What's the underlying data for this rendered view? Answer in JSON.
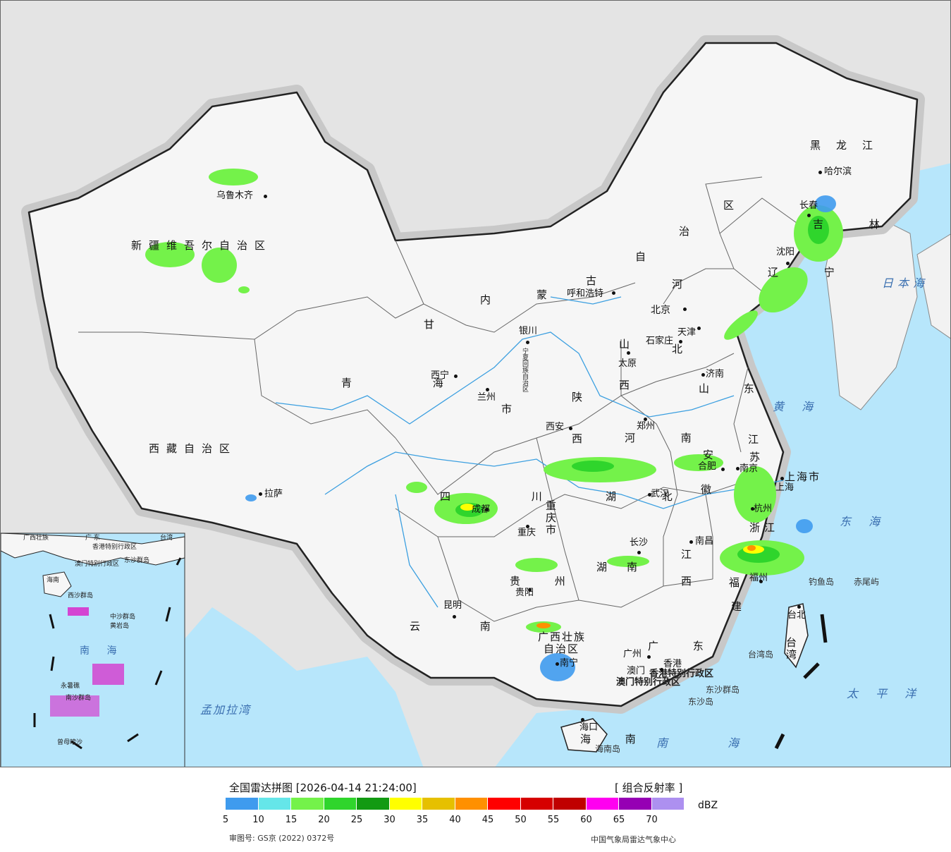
{
  "legend": {
    "title": "全国雷达拼图 [2026-04-14 21:24:00]",
    "product": "[ 组合反射率 ]",
    "unit": "dBZ",
    "approval": "审图号: GS京 (2022) 0372号",
    "source": "中国气象局雷达气象中心",
    "colors": [
      "#3f9bee",
      "#65e6e9",
      "#74f24a",
      "#2fd52c",
      "#129a12",
      "#ffff00",
      "#e6c000",
      "#ff9000",
      "#ff0000",
      "#d60000",
      "#c00000",
      "#ff00f0",
      "#9600b4",
      "#ad90f0"
    ],
    "ticks": [
      "5",
      "10",
      "15",
      "20",
      "25",
      "30",
      "35",
      "40",
      "45",
      "50",
      "55",
      "60",
      "65",
      "70"
    ]
  },
  "provinces": {
    "xinjiang": "新疆维吾尔自治区",
    "xizang": "西藏自治区",
    "qinghai": "青 海",
    "gansu": "甘",
    "neimenggu_a": "内",
    "neimenggu_b": "蒙",
    "neimenggu_c": "古",
    "neimenggu_d": "自",
    "neimenggu_e": "治",
    "neimenggu_f": "区",
    "heilongjiang": "黑龙江",
    "jilin": "吉 林",
    "liaoning": "辽 宁",
    "hebei_a": "河",
    "hebei_b": "北",
    "shanxi": "山",
    "shanxi_b": "西",
    "shandong": "山 东",
    "henan": "河 南",
    "shaanxi": "陕",
    "shaanxi_b": "西",
    "sichuan": "四 川",
    "chongqing": "重庆市",
    "hubei": "湖 北",
    "hunan": "湖",
    "hunan_b": "南",
    "jiangxi": "江",
    "jiangxi_b": "西",
    "anhui": "安",
    "anhui_b": "徽",
    "jiangsu": "江",
    "jiangsu_b": "苏",
    "zhejiang": "浙江",
    "fujian": "福",
    "fujian_b": "建",
    "guangdong": "广 东",
    "guangxi_a": "广西壮族",
    "guangxi_b": "自治区",
    "guizhou": "贵 州",
    "yunnan": "云 南",
    "hainan": "海 南",
    "taiwan": "台湾",
    "shanghai": "上海市",
    "ningxia": "宁夏回族自治区",
    "beijing": "北京",
    "tianjin": "天津",
    "hk": "香港特别行政区",
    "macau": "澳门特别行政区",
    "gansu_shi": "市"
  },
  "cities": {
    "urumqi": "乌鲁木齐",
    "lhasa": "拉萨",
    "xining": "西宁",
    "lanzhou": "兰州",
    "yinchuan": "银川",
    "hohhot": "呼和浩特",
    "beijing": "北京",
    "tianjin": "天津",
    "shijiazhuang": "石家庄",
    "taiyuan": "太原",
    "jinan": "济南",
    "zhengzhou": "郑州",
    "xian": "西安",
    "chengdu": "成都",
    "chongqing": "重庆",
    "wuhan": "武汉",
    "hefei": "合肥",
    "nanjing": "南京",
    "shanghai": "上海",
    "hangzhou": "杭州",
    "nanchang": "南昌",
    "changsha": "长沙",
    "fuzhou": "福州",
    "guiyang": "贵阳",
    "kunming": "昆明",
    "nanning": "南宁",
    "guangzhou": "广州",
    "hongkong": "香港",
    "macau": "澳门",
    "haikou": "海口",
    "taibei": "台北",
    "shenyang": "沈阳",
    "changchun": "长春",
    "harbin": "哈尔滨"
  },
  "seas": {
    "japan": "日本海",
    "yellow": "黄 海",
    "east": "东 海",
    "south": "南 海",
    "pacific": "太 平 洋",
    "bengal": "孟加拉湾"
  },
  "islands": {
    "diaoyu": "钓鱼岛",
    "chiwei": "赤尾屿",
    "taiwan_island": "台湾岛",
    "dongsha_qd": "东沙群岛",
    "dongsha": "东沙岛",
    "hainan_island": "海南岛"
  },
  "inset": {
    "guangdong": "广 东",
    "taiwan": "台湾",
    "guangxi": "广西壮族",
    "hk": "香港特别行政区",
    "macau": "澳门特别行政区",
    "dongsha": "东沙群岛",
    "hainan": "海南",
    "xisha": "西沙群岛",
    "zhongsha": "中沙群岛",
    "huangyan": "黄岩岛",
    "south_sea": "南 海",
    "nansha": "南沙群岛",
    "yongshu": "永暑礁",
    "zengmu": "曾母暗沙"
  }
}
